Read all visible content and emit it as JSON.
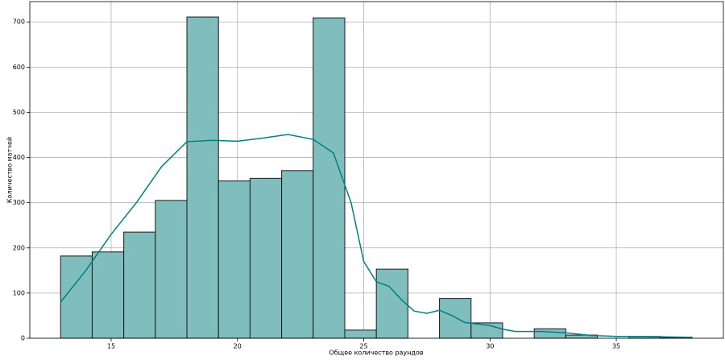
{
  "chart_data": {
    "type": "histogram",
    "xlabel": "Общее количество раундов",
    "ylabel": "Количество матчей",
    "bins": [
      13,
      14.25,
      15.5,
      16.75,
      18,
      19.25,
      20.5,
      21.75,
      23,
      24.25,
      25.5,
      26.75,
      28,
      29.25,
      30.5,
      31.75,
      33,
      34.25,
      35.5,
      36.75,
      38
    ],
    "values": [
      182,
      191,
      235,
      305,
      711,
      348,
      354,
      371,
      709,
      18,
      153,
      0,
      88,
      34,
      0,
      21,
      7,
      0,
      4,
      2
    ],
    "color": "#80bdbd",
    "edgecolor": "#1a1a1a",
    "kde": {
      "color": "#008080",
      "x": [
        13,
        14,
        15,
        16,
        17,
        18,
        19,
        20,
        21,
        22,
        23,
        23.8,
        24.5,
        25,
        25.5,
        26,
        26.5,
        27,
        27.5,
        28,
        28.5,
        29,
        30,
        30.5,
        31,
        32,
        33,
        34,
        35,
        36,
        37,
        38
      ],
      "values": [
        80,
        150,
        230,
        300,
        380,
        435,
        438,
        436,
        443,
        451,
        440,
        410,
        300,
        170,
        125,
        115,
        85,
        60,
        55,
        62,
        50,
        35,
        28,
        20,
        15,
        15,
        12,
        6,
        4,
        4,
        3,
        2
      ]
    },
    "xlim": [
      11.78,
      39.24
    ],
    "ylim": [
      0,
      745
    ],
    "xticks": [
      15,
      20,
      25,
      30,
      35
    ],
    "yticks": [
      0,
      100,
      200,
      300,
      400,
      500,
      600,
      700
    ],
    "grid": true
  }
}
